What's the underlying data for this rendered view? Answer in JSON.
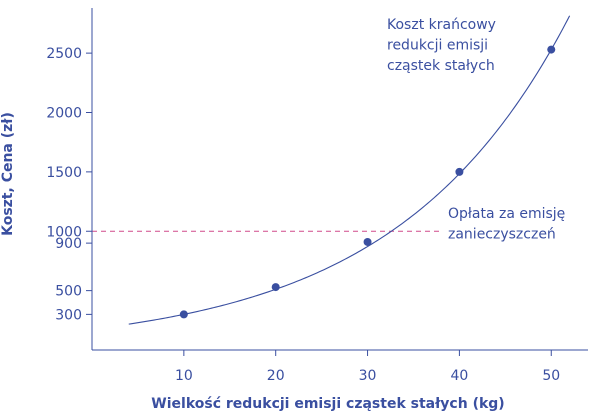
{
  "chart_data": {
    "type": "scatter",
    "title": "",
    "xlabel": "Wielkość redukcji emisji cząstek stałych (kg)",
    "ylabel": "Koszt, Cena (zł)",
    "x_ticks": [
      10,
      20,
      30,
      40,
      50
    ],
    "y_ticks": [
      300,
      500,
      900,
      1000,
      1500,
      2000,
      2500
    ],
    "xlim": [
      0,
      54
    ],
    "ylim": [
      0,
      2880
    ],
    "series": [
      {
        "name": "Koszt krańcowy redukcji emisji cząstek stałych",
        "x": [
          10,
          20,
          30,
          40,
          50
        ],
        "y": [
          300,
          530,
          910,
          1500,
          2530
        ],
        "color": "#3a4fa0"
      }
    ],
    "curve": {
      "x_start": 4,
      "x_end": 52,
      "color": "#3a4fa0"
    },
    "reference_line": {
      "name": "Opłata za emisję zanieczyszczeń",
      "y": 1000,
      "x_end": 38,
      "style": "dashed",
      "color": "#d04a8a"
    },
    "annotations": [
      {
        "lines": [
          "Koszt krańcowy",
          "redukcji emisji",
          "cząstek stałych"
        ]
      },
      {
        "lines": [
          "Opłata za emisję",
          "zanieczyszczeń"
        ]
      }
    ]
  }
}
